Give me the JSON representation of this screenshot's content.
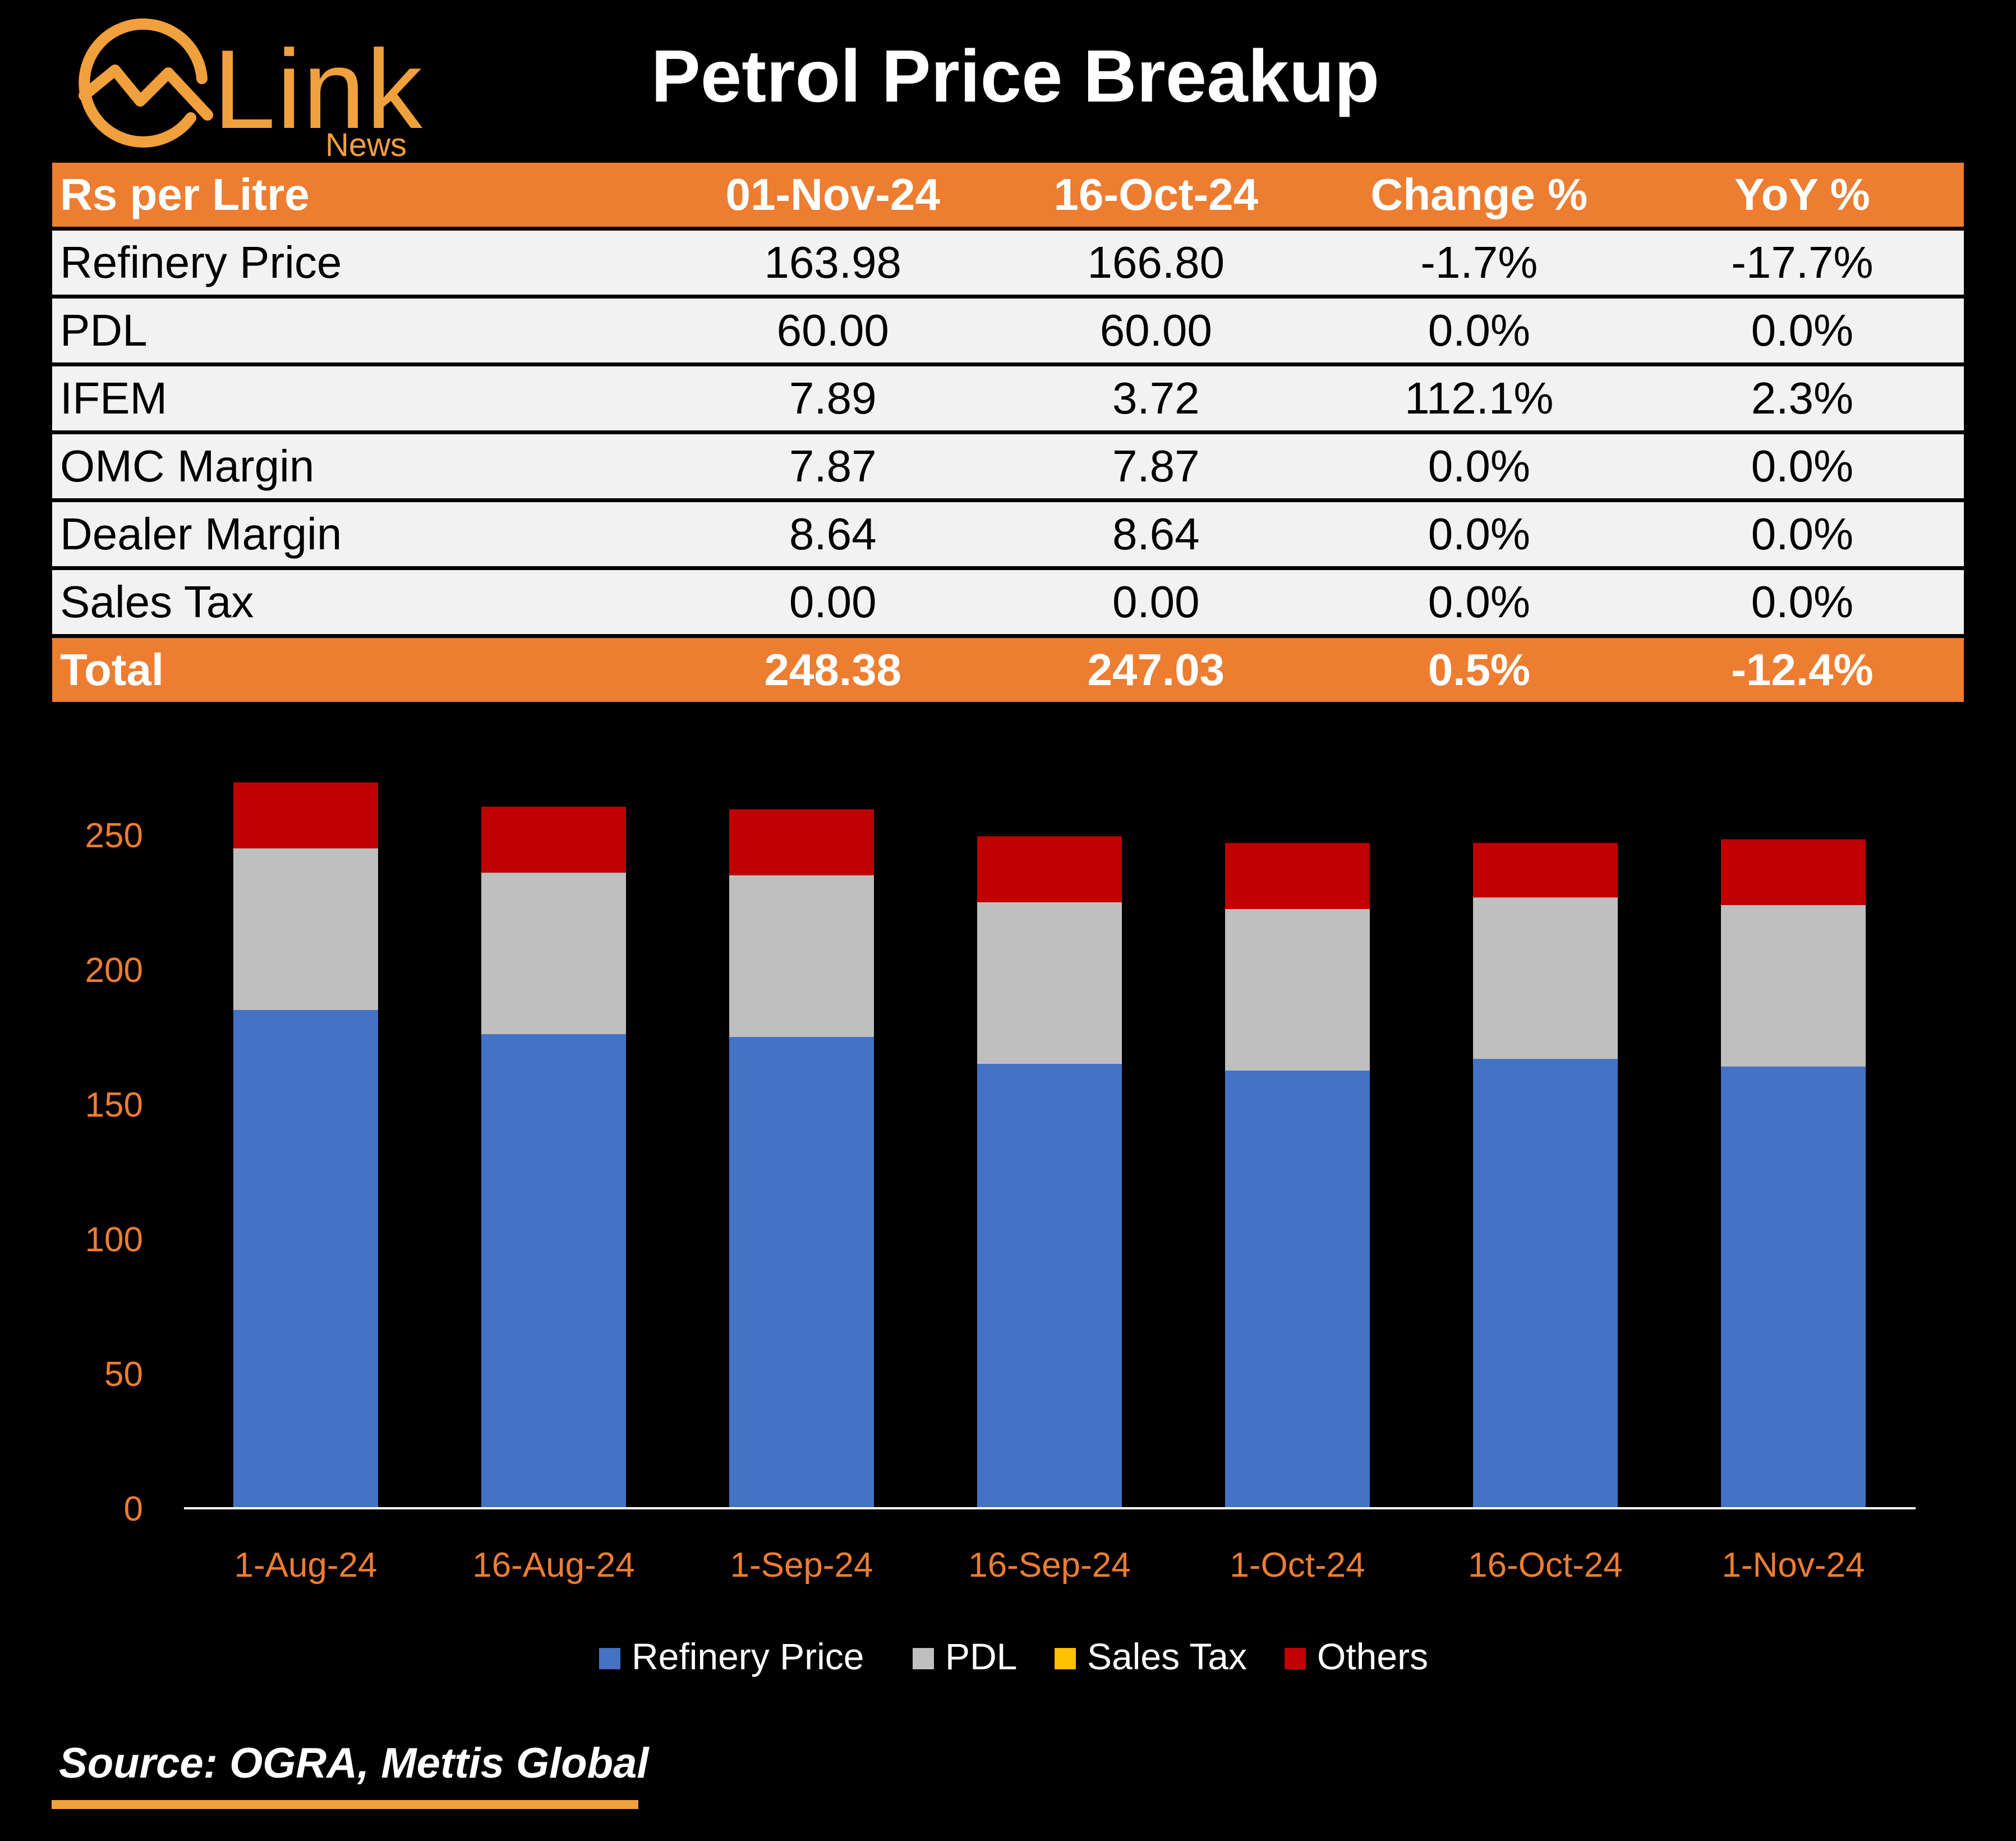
{
  "brand": {
    "name": "Link",
    "sub": "News",
    "color": "#f0a03c"
  },
  "title": "Petrol Price Breakup",
  "table": {
    "headers": [
      "Rs per Litre",
      "01-Nov-24",
      "16-Oct-24",
      "Change %",
      "YoY %"
    ],
    "rows": [
      [
        "Refinery Price",
        "163.98",
        "166.80",
        "-1.7%",
        "-17.7%"
      ],
      [
        "PDL",
        "60.00",
        "60.00",
        "0.0%",
        "0.0%"
      ],
      [
        "IFEM",
        "7.89",
        "3.72",
        "112.1%",
        "2.3%"
      ],
      [
        "OMC Margin",
        "7.87",
        "7.87",
        "0.0%",
        "0.0%"
      ],
      [
        "Dealer Margin",
        "8.64",
        "8.64",
        "0.0%",
        "0.0%"
      ],
      [
        "Sales Tax",
        "0.00",
        "0.00",
        "0.0%",
        "0.0%"
      ]
    ],
    "total": [
      "Total",
      "248.38",
      "247.03",
      "0.5%",
      "-12.4%"
    ]
  },
  "chart_data": {
    "type": "bar",
    "stacked": true,
    "categories": [
      "1-Aug-24",
      "16-Aug-24",
      "1-Sep-24",
      "16-Sep-24",
      "1-Oct-24",
      "16-Oct-24",
      "1-Nov-24"
    ],
    "series": [
      {
        "name": "Refinery Price",
        "color": "#4472c4",
        "values": [
          185,
          176,
          175,
          165,
          162.5,
          166.8,
          163.98
        ]
      },
      {
        "name": "PDL",
        "color": "#bfbfbf",
        "values": [
          60,
          60,
          60,
          60,
          60,
          60,
          60
        ]
      },
      {
        "name": "Sales Tax",
        "color": "#ffc000",
        "values": [
          0,
          0,
          0,
          0,
          0,
          0,
          0
        ]
      },
      {
        "name": "Others",
        "color": "#c00000",
        "values": [
          24.5,
          24.5,
          24.5,
          24.5,
          24.5,
          20.23,
          24.4
        ]
      }
    ],
    "yticks": [
      0,
      50,
      100,
      150,
      200,
      250
    ],
    "ylim": [
      0,
      270
    ],
    "legend_position": "bottom",
    "grid": false
  },
  "source": "Source: OGRA, Mettis Global"
}
